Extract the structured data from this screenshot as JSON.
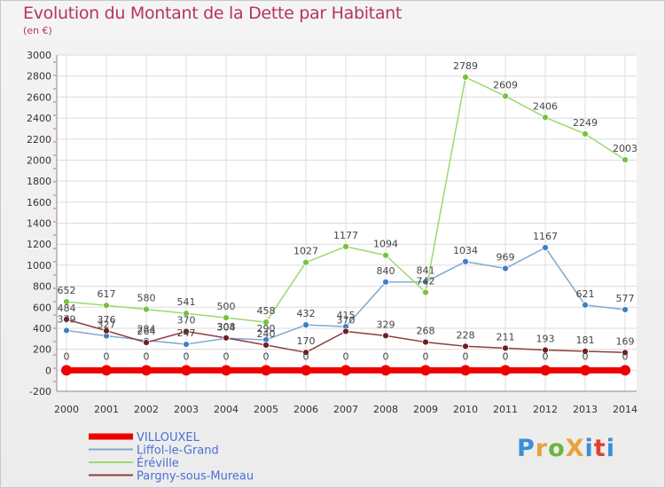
{
  "title": "Evolution du Montant de la Dette par Habitant",
  "unit": "(en €)",
  "logo": {
    "text": "ProXiti",
    "colors": [
      "#3b8fd6",
      "#e9a23b",
      "#6fb33c",
      "#e9a23b",
      "#3b8fd6",
      "#e0402f",
      "#3b8fd6"
    ]
  },
  "chart_data": {
    "type": "line",
    "x": [
      2000,
      2001,
      2002,
      2003,
      2004,
      2005,
      2006,
      2007,
      2008,
      2009,
      2010,
      2011,
      2012,
      2013,
      2014
    ],
    "ylim": [
      -200,
      3000
    ],
    "yticks": [
      -200,
      0,
      200,
      400,
      600,
      800,
      1000,
      1200,
      1400,
      1600,
      1800,
      2000,
      2200,
      2400,
      2600,
      2800,
      3000
    ],
    "grid": true,
    "legend_position": "bottom-left",
    "series": [
      {
        "name": "VILLOUXEL",
        "color": "#ee0000",
        "dot": "#ee0000",
        "width": 7,
        "radius": 6,
        "values": [
          0,
          0,
          0,
          0,
          0,
          0,
          0,
          0,
          0,
          0,
          0,
          0,
          0,
          0,
          0
        ],
        "labels": [
          "0",
          "0",
          "0",
          "0",
          "0",
          "0",
          "0",
          "0",
          "0",
          "0",
          "0",
          "0",
          "0",
          "0",
          "0"
        ]
      },
      {
        "name": "Liffol-le-Grand",
        "color": "#7fa9d0",
        "dot": "#3d80c4",
        "width": 1.5,
        "radius": 3.5,
        "values": [
          379,
          327,
          284,
          247,
          304,
          290,
          432,
          415,
          840,
          841,
          1034,
          969,
          1167,
          621,
          577
        ],
        "labels": [
          "379",
          "327",
          "284",
          "247",
          "304",
          "290",
          "432",
          "415",
          "840",
          "841",
          "1034",
          "969",
          "1167",
          "621",
          "577"
        ]
      },
      {
        "name": "Éréville",
        "color": "#9ed86e",
        "dot": "#76c240",
        "width": 1.5,
        "radius": 3.5,
        "values": [
          652,
          617,
          580,
          541,
          500,
          458,
          1027,
          1177,
          1094,
          742,
          2789,
          2609,
          2406,
          2249,
          2003
        ],
        "labels": [
          "652",
          "617",
          "580",
          "541",
          "500",
          "458",
          "1027",
          "1177",
          "1094",
          "742",
          "2789",
          "2609",
          "2406",
          "2249",
          "2003"
        ]
      },
      {
        "name": "Pargny-sous-Mureau",
        "color": "#8a3f3f",
        "dot": "#6e1f1f",
        "width": 1.5,
        "radius": 3.5,
        "values": [
          484,
          376,
          264,
          370,
          308,
          240,
          170,
          370,
          329,
          268,
          228,
          211,
          193,
          181,
          169
        ],
        "labels": [
          "484",
          "376",
          "264",
          "370",
          "308",
          "240",
          "170",
          "370",
          "329",
          "268",
          "228",
          "211",
          "193",
          "181",
          "169"
        ]
      }
    ]
  }
}
